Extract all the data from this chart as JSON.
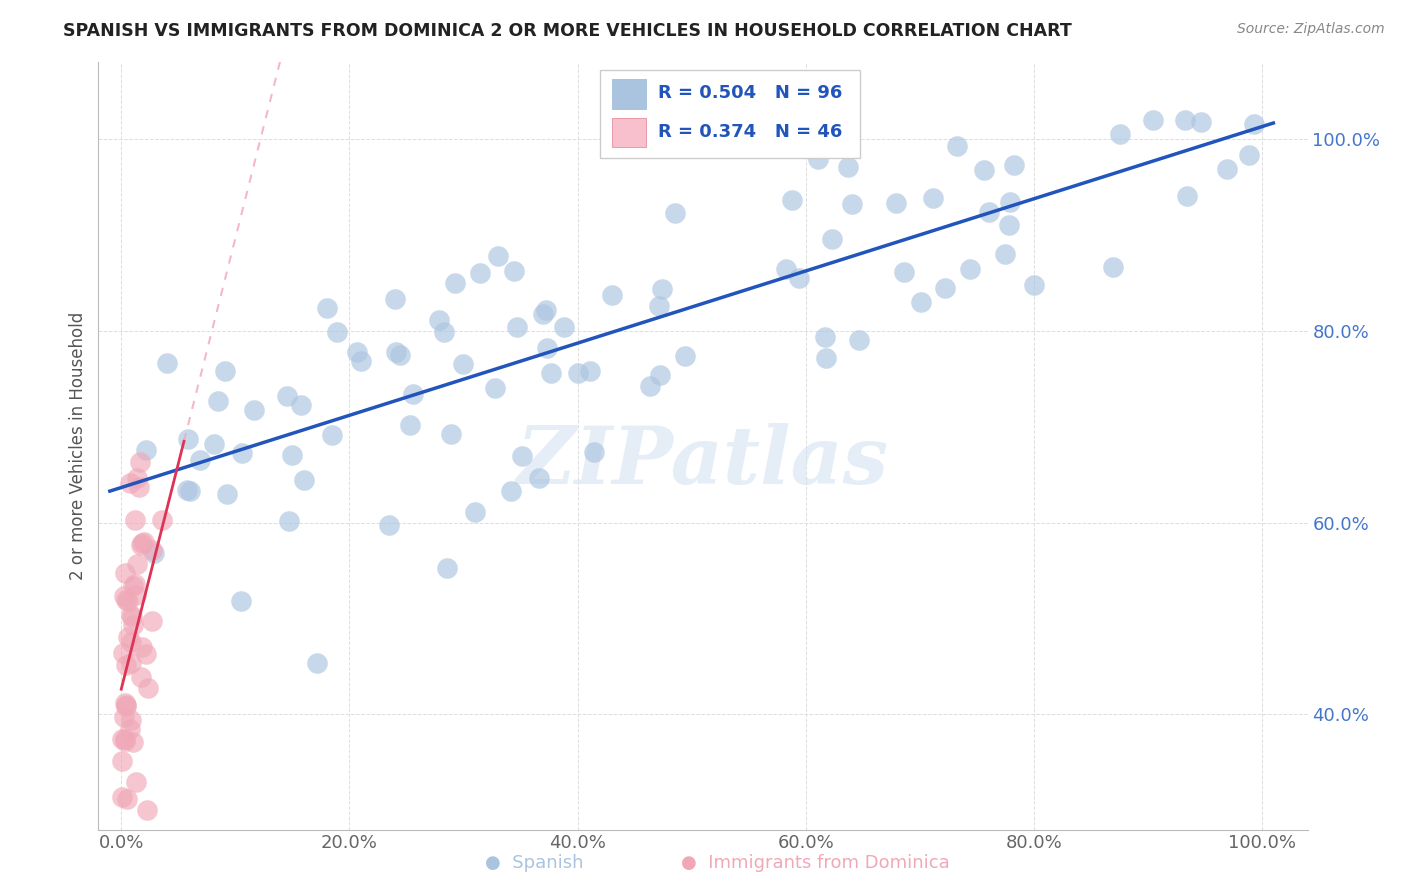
{
  "title": "SPANISH VS IMMIGRANTS FROM DOMINICA 2 OR MORE VEHICLES IN HOUSEHOLD CORRELATION CHART",
  "source": "Source: ZipAtlas.com",
  "ylabel": "2 or more Vehicles in Household",
  "xlim": [
    -0.02,
    1.04
  ],
  "ylim": [
    0.28,
    1.08
  ],
  "xticks": [
    0.0,
    0.2,
    0.4,
    0.6,
    0.8,
    1.0
  ],
  "yticks": [
    0.4,
    0.6,
    0.8,
    1.0
  ],
  "xticklabels": [
    "0.0%",
    "20.0%",
    "40.0%",
    "60.0%",
    "80.0%",
    "100.0%"
  ],
  "yticklabels": [
    "40.0%",
    "60.0%",
    "80.0%",
    "100.0%"
  ],
  "legend_labels": [
    "Spanish",
    "Immigrants from Dominica"
  ],
  "spanish_R": 0.504,
  "spanish_N": 96,
  "dominica_R": 0.374,
  "dominica_N": 46,
  "spanish_color": "#aac4e0",
  "dominica_color": "#f0a8b8",
  "spanish_line_color": "#2255bb",
  "dominica_line_color": "#dd3355",
  "dominica_dash_color": "#f0a8b8",
  "watermark_color": "#d0dff0",
  "title_color": "#222222",
  "source_color": "#888888",
  "ylabel_color": "#555555",
  "xtick_color": "#666666",
  "ytick_color": "#4477cc",
  "grid_color": "#dddddd",
  "watermark": "ZIPatlas"
}
